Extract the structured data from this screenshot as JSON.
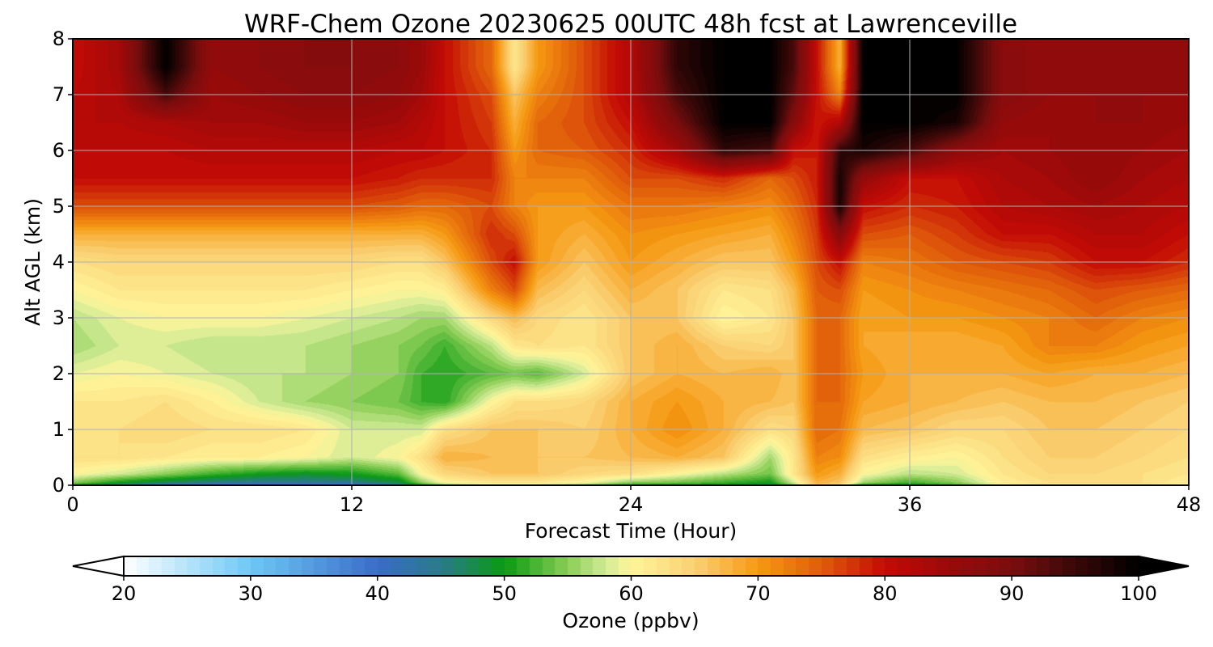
{
  "chart_data": {
    "type": "heatmap",
    "title": "WRF-Chem Ozone  20230625 00UTC 48h fcst at Lawrenceville",
    "xlabel": "Forecast Time (Hour)",
    "ylabel": "Alt AGL (km)",
    "xlim": [
      0,
      48
    ],
    "ylim": [
      0,
      8
    ],
    "xticks": [
      "0",
      "12",
      "24",
      "36",
      "48"
    ],
    "yticks": [
      "0",
      "1",
      "2",
      "3",
      "4",
      "5",
      "6",
      "7",
      "8"
    ],
    "grid": true,
    "colorbar": {
      "label": "Ozone  (ppbv)",
      "orientation": "horizontal",
      "extend": "both",
      "range": [
        20,
        100
      ],
      "ticks": [
        "20",
        "30",
        "40",
        "50",
        "60",
        "70",
        "80",
        "90",
        "100"
      ],
      "stops": [
        {
          "v": 20,
          "c": "#ffffff"
        },
        {
          "v": 30,
          "c": "#6ec8f5"
        },
        {
          "v": 40,
          "c": "#3a6cc8"
        },
        {
          "v": 45,
          "c": "#2a7a8a"
        },
        {
          "v": 50,
          "c": "#0a9a12"
        },
        {
          "v": 55,
          "c": "#8acd55"
        },
        {
          "v": 58,
          "c": "#d2eb96"
        },
        {
          "v": 60,
          "c": "#fff59a"
        },
        {
          "v": 65,
          "c": "#fbd074"
        },
        {
          "v": 70,
          "c": "#f59a12"
        },
        {
          "v": 75,
          "c": "#e05c0a"
        },
        {
          "v": 80,
          "c": "#c40a05"
        },
        {
          "v": 85,
          "c": "#9a0a0a"
        },
        {
          "v": 90,
          "c": "#7a0d0d"
        },
        {
          "v": 95,
          "c": "#3a0808"
        },
        {
          "v": 100,
          "c": "#000000"
        }
      ]
    },
    "x": [
      0,
      2,
      4,
      6,
      8,
      10,
      12,
      14,
      15,
      16,
      18,
      19,
      20,
      22,
      24,
      26,
      28,
      30,
      31,
      32,
      33,
      34,
      36,
      38,
      40,
      42,
      44,
      46,
      48
    ],
    "y": [
      0,
      0.05,
      0.2,
      0.5,
      1,
      1.5,
      2,
      2.5,
      3,
      3.5,
      4,
      4.5,
      5,
      5.5,
      6,
      6.5,
      7,
      7.5,
      8
    ],
    "values": [
      [
        50,
        44,
        40,
        38,
        37,
        37,
        38,
        42,
        50,
        55,
        58,
        58,
        57,
        55,
        50,
        50,
        49,
        47,
        55,
        66,
        62,
        50,
        48,
        52,
        60,
        62,
        62,
        62,
        60
      ],
      [
        55,
        50,
        47,
        45,
        44,
        44,
        45,
        48,
        55,
        60,
        62,
        62,
        62,
        60,
        55,
        54,
        52,
        50,
        58,
        68,
        66,
        56,
        52,
        55,
        61,
        63,
        63,
        63,
        61
      ],
      [
        60,
        58,
        55,
        52,
        50,
        49,
        50,
        53,
        60,
        64,
        66,
        66,
        66,
        64,
        63,
        60,
        57,
        54,
        62,
        70,
        68,
        60,
        57,
        58,
        62,
        64,
        64,
        63,
        62
      ],
      [
        63,
        63,
        62,
        61,
        61,
        60,
        58,
        60,
        63,
        68,
        67,
        66,
        66,
        66,
        67,
        68,
        66,
        56,
        62,
        72,
        71,
        63,
        61,
        60,
        63,
        65,
        65,
        64,
        63
      ],
      [
        62,
        63,
        64,
        63,
        63,
        62,
        58,
        58,
        58,
        63,
        66,
        66,
        66,
        65,
        68,
        71,
        68,
        63,
        64,
        74,
        73,
        67,
        66,
        64,
        64,
        66,
        66,
        65,
        64
      ],
      [
        62,
        62,
        63,
        61,
        58,
        56,
        55,
        54,
        52,
        51,
        60,
        63,
        63,
        64,
        68,
        70,
        68,
        67,
        66,
        74,
        74,
        69,
        68,
        67,
        66,
        67,
        67,
        66,
        65
      ],
      [
        59,
        60,
        59,
        58,
        57,
        57,
        56,
        55,
        52,
        51,
        53,
        54,
        53,
        58,
        66,
        68,
        67,
        68,
        66,
        74,
        74,
        70,
        68,
        68,
        68,
        69,
        68,
        68,
        67
      ],
      [
        56,
        58,
        58,
        57,
        57,
        57,
        56,
        55,
        54,
        52,
        57,
        62,
        63,
        62,
        66,
        68,
        65,
        64,
        66,
        74,
        74,
        69,
        68,
        68,
        69,
        72,
        72,
        70,
        69
      ],
      [
        57,
        59,
        60,
        60,
        60,
        59,
        58,
        57,
        56,
        56,
        64,
        67,
        64,
        62,
        66,
        66,
        60,
        62,
        66,
        74,
        74,
        69,
        70,
        70,
        71,
        72,
        74,
        72,
        71
      ],
      [
        60,
        62,
        62,
        62,
        62,
        62,
        61,
        60,
        60,
        61,
        72,
        76,
        67,
        64,
        68,
        66,
        62,
        63,
        67,
        75,
        76,
        70,
        71,
        72,
        73,
        74,
        76,
        75,
        74
      ],
      [
        63,
        64,
        64,
        64,
        64,
        64,
        64,
        63,
        63,
        66,
        76,
        80,
        70,
        66,
        70,
        68,
        66,
        66,
        70,
        76,
        80,
        72,
        73,
        75,
        76,
        77,
        80,
        80,
        78
      ],
      [
        68,
        68,
        68,
        68,
        68,
        68,
        68,
        68,
        68,
        70,
        78,
        76,
        70,
        68,
        71,
        70,
        69,
        68,
        72,
        77,
        88,
        76,
        75,
        77,
        80,
        80,
        82,
        82,
        80
      ],
      [
        76,
        76,
        76,
        76,
        76,
        76,
        76,
        75,
        74,
        74,
        76,
        72,
        70,
        70,
        73,
        73,
        72,
        71,
        74,
        78,
        98,
        80,
        78,
        79,
        82,
        83,
        84,
        83,
        82
      ],
      [
        80,
        80,
        80,
        80,
        80,
        80,
        80,
        79,
        78,
        78,
        78,
        72,
        72,
        72,
        76,
        76,
        78,
        74,
        76,
        79,
        98,
        86,
        80,
        80,
        83,
        84,
        86,
        84,
        83
      ],
      [
        81,
        81,
        81,
        82,
        82,
        82,
        82,
        81,
        81,
        80,
        78,
        70,
        74,
        75,
        78,
        84,
        96,
        94,
        80,
        79,
        96,
        98,
        94,
        87,
        84,
        85,
        86,
        85,
        84
      ],
      [
        82,
        82,
        83,
        84,
        84,
        85,
        85,
        84,
        82,
        80,
        77,
        68,
        74,
        76,
        80,
        90,
        100,
        100,
        88,
        79,
        82,
        100,
        100,
        98,
        86,
        85,
        86,
        86,
        85
      ],
      [
        81,
        83,
        94,
        85,
        86,
        87,
        87,
        86,
        84,
        80,
        76,
        66,
        72,
        76,
        82,
        94,
        100,
        100,
        92,
        80,
        72,
        100,
        100,
        100,
        88,
        86,
        86,
        86,
        86
      ],
      [
        80,
        84,
        100,
        86,
        87,
        88,
        88,
        87,
        85,
        80,
        74,
        62,
        70,
        76,
        82,
        96,
        100,
        100,
        94,
        80,
        68,
        100,
        100,
        100,
        88,
        86,
        86,
        86,
        86
      ],
      [
        80,
        84,
        100,
        86,
        87,
        88,
        88,
        87,
        85,
        80,
        74,
        62,
        70,
        76,
        82,
        96,
        100,
        100,
        94,
        80,
        68,
        100,
        100,
        100,
        88,
        86,
        86,
        86,
        86
      ]
    ]
  }
}
